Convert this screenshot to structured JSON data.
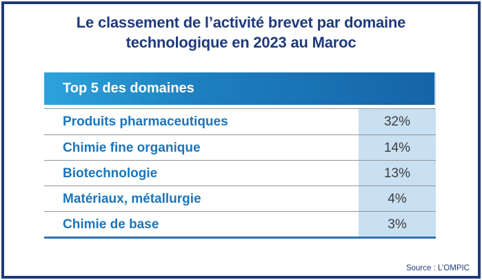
{
  "title": {
    "line1": "Le classement de l’activité brevet par domaine",
    "line2": "technologique en 2023 au Maroc"
  },
  "table": {
    "header": "Top 5 des domaines",
    "rows": [
      {
        "label": "Produits pharmaceutiques",
        "value": "32%"
      },
      {
        "label": "Chimie fine organique",
        "value": "14%"
      },
      {
        "label": "Biotechnologie",
        "value": "13%"
      },
      {
        "label": "Matériaux, métallurgie",
        "value": "4%"
      },
      {
        "label": "Chimie de base",
        "value": "3%"
      }
    ]
  },
  "source": "Source : L’OMPIC",
  "colors": {
    "frame_border": "#1e3a7b",
    "title_text": "#1e3a7b",
    "header_gradient_start": "#2ca3dc",
    "header_gradient_end": "#1564a8",
    "header_text": "#ffffff",
    "row_label_text": "#1b75bc",
    "value_cell_background": "#c9dff2",
    "value_text": "#3c3c3c",
    "row_separator": "#8f9499",
    "table_bottom_rule": "#2f6fae"
  },
  "chart_data": {
    "type": "table",
    "title": "Le classement de l’activité brevet par domaine technologique en 2023 au Maroc",
    "header": "Top 5 des domaines",
    "categories": [
      "Produits pharmaceutiques",
      "Chimie fine organique",
      "Biotechnologie",
      "Matériaux, métallurgie",
      "Chimie de base"
    ],
    "values": [
      32,
      14,
      13,
      4,
      3
    ],
    "unit": "%",
    "source": "Source : L’OMPIC"
  }
}
